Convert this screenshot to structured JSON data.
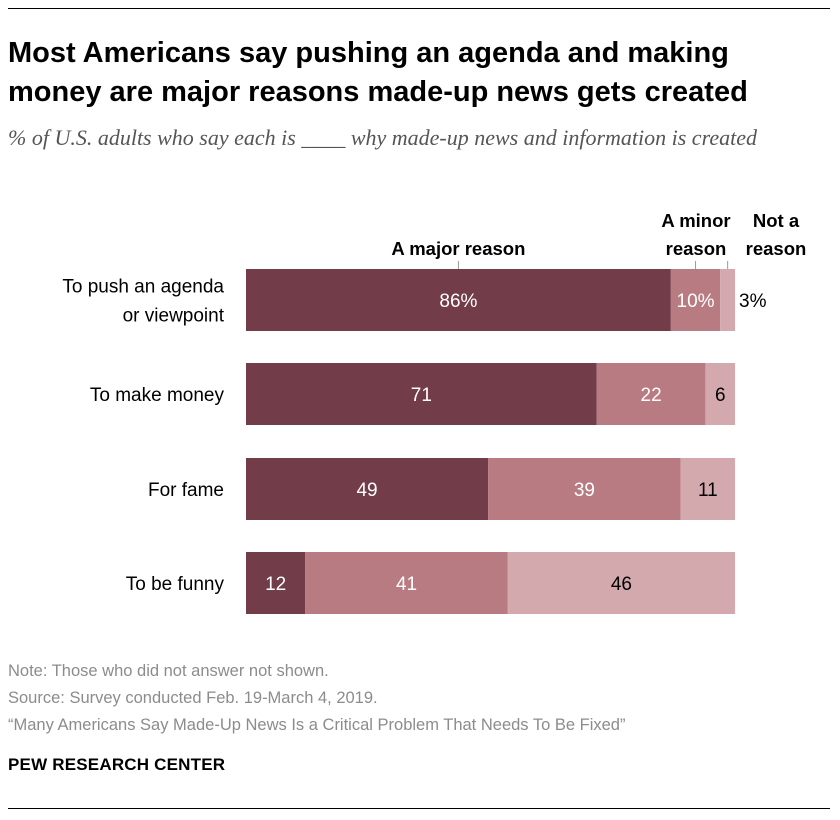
{
  "title": "Most Americans say pushing an agenda and making money are major reasons made-up news gets created",
  "subtitle": "% of U.S. adults who say each is ____ why made-up news and information is created",
  "footer": {
    "note": "Note: Those who did not answer not shown.",
    "source": "Source: Survey conducted Feb. 19-March 4, 2019.",
    "report": "“Many Americans Say Made-Up News Is a Critical Problem That Needs To Be Fixed”",
    "brand": "PEW RESEARCH CENTER"
  },
  "colors": {
    "major": "#723c49",
    "minor": "#b97b82",
    "not": "#d4a9ae",
    "connector": "#999999"
  },
  "chart_data": {
    "type": "bar",
    "orientation": "horizontal",
    "stacked": true,
    "categories": [
      "To push an agenda or viewpoint",
      "To make money",
      "For fame",
      "To be funny"
    ],
    "series": [
      {
        "name": "A major reason",
        "values": [
          86,
          71,
          49,
          12
        ]
      },
      {
        "name": "A minor reason",
        "values": [
          10,
          22,
          39,
          41
        ]
      },
      {
        "name": "Not a reason",
        "values": [
          3,
          6,
          11,
          46
        ]
      }
    ],
    "value_labels": [
      [
        "86%",
        "10%",
        "3%"
      ],
      [
        "71",
        "22",
        "6"
      ],
      [
        "49",
        "39",
        "11"
      ],
      [
        "12",
        "41",
        "46"
      ]
    ],
    "xlim": [
      0,
      100
    ]
  }
}
